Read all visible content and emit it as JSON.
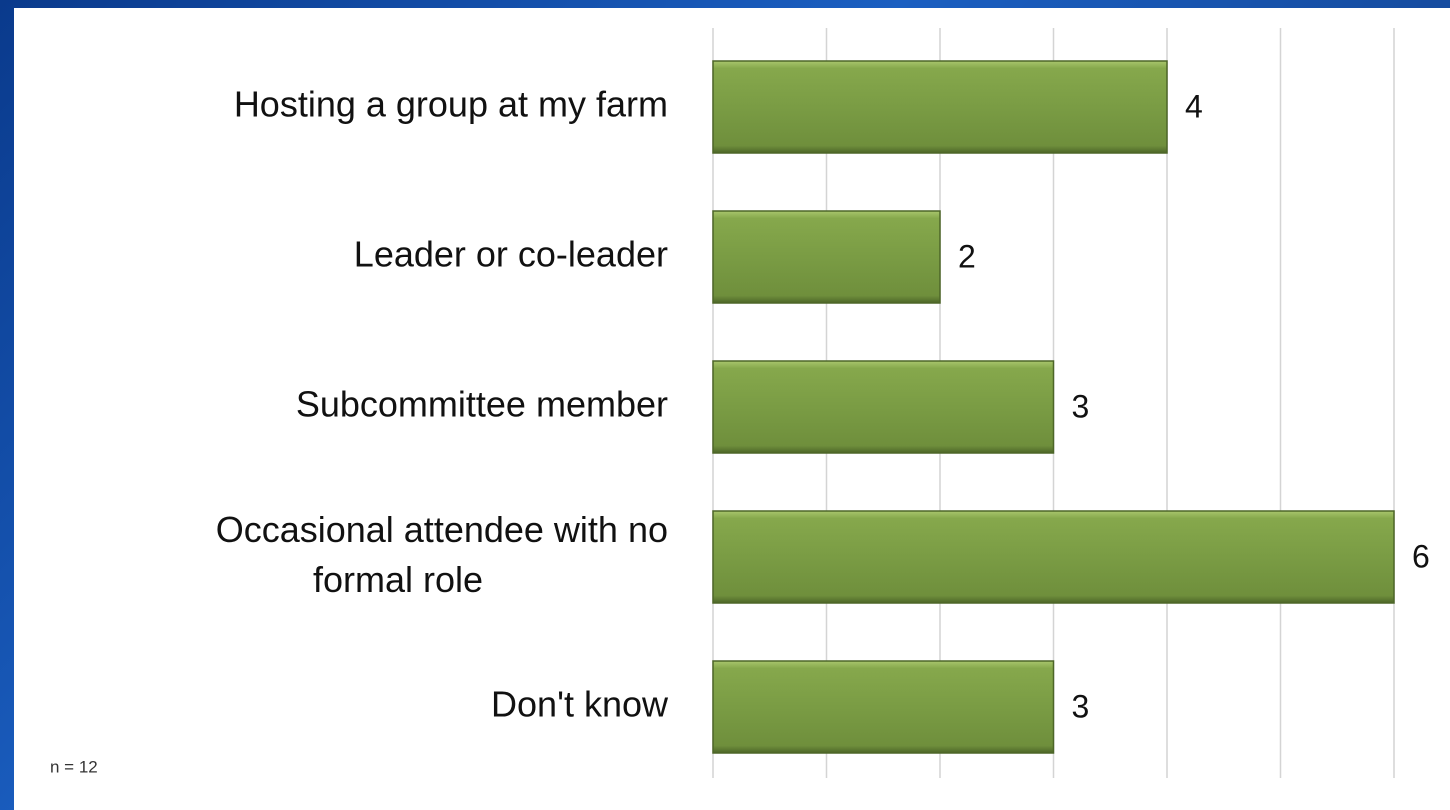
{
  "chart_data": {
    "type": "barh",
    "categories": [
      "Hosting a group at my farm",
      "Leader or co-leader",
      "Subcommittee member",
      "Occasional attendee with no formal role",
      "Don't know"
    ],
    "values": [
      4,
      2,
      3,
      6,
      3
    ],
    "color": "#7a9c44",
    "xlim": [
      0,
      6
    ],
    "xticks": [
      0,
      1,
      2,
      3,
      4,
      5,
      6
    ],
    "show_tick_labels": false,
    "grid": true,
    "note": "n = 12"
  }
}
